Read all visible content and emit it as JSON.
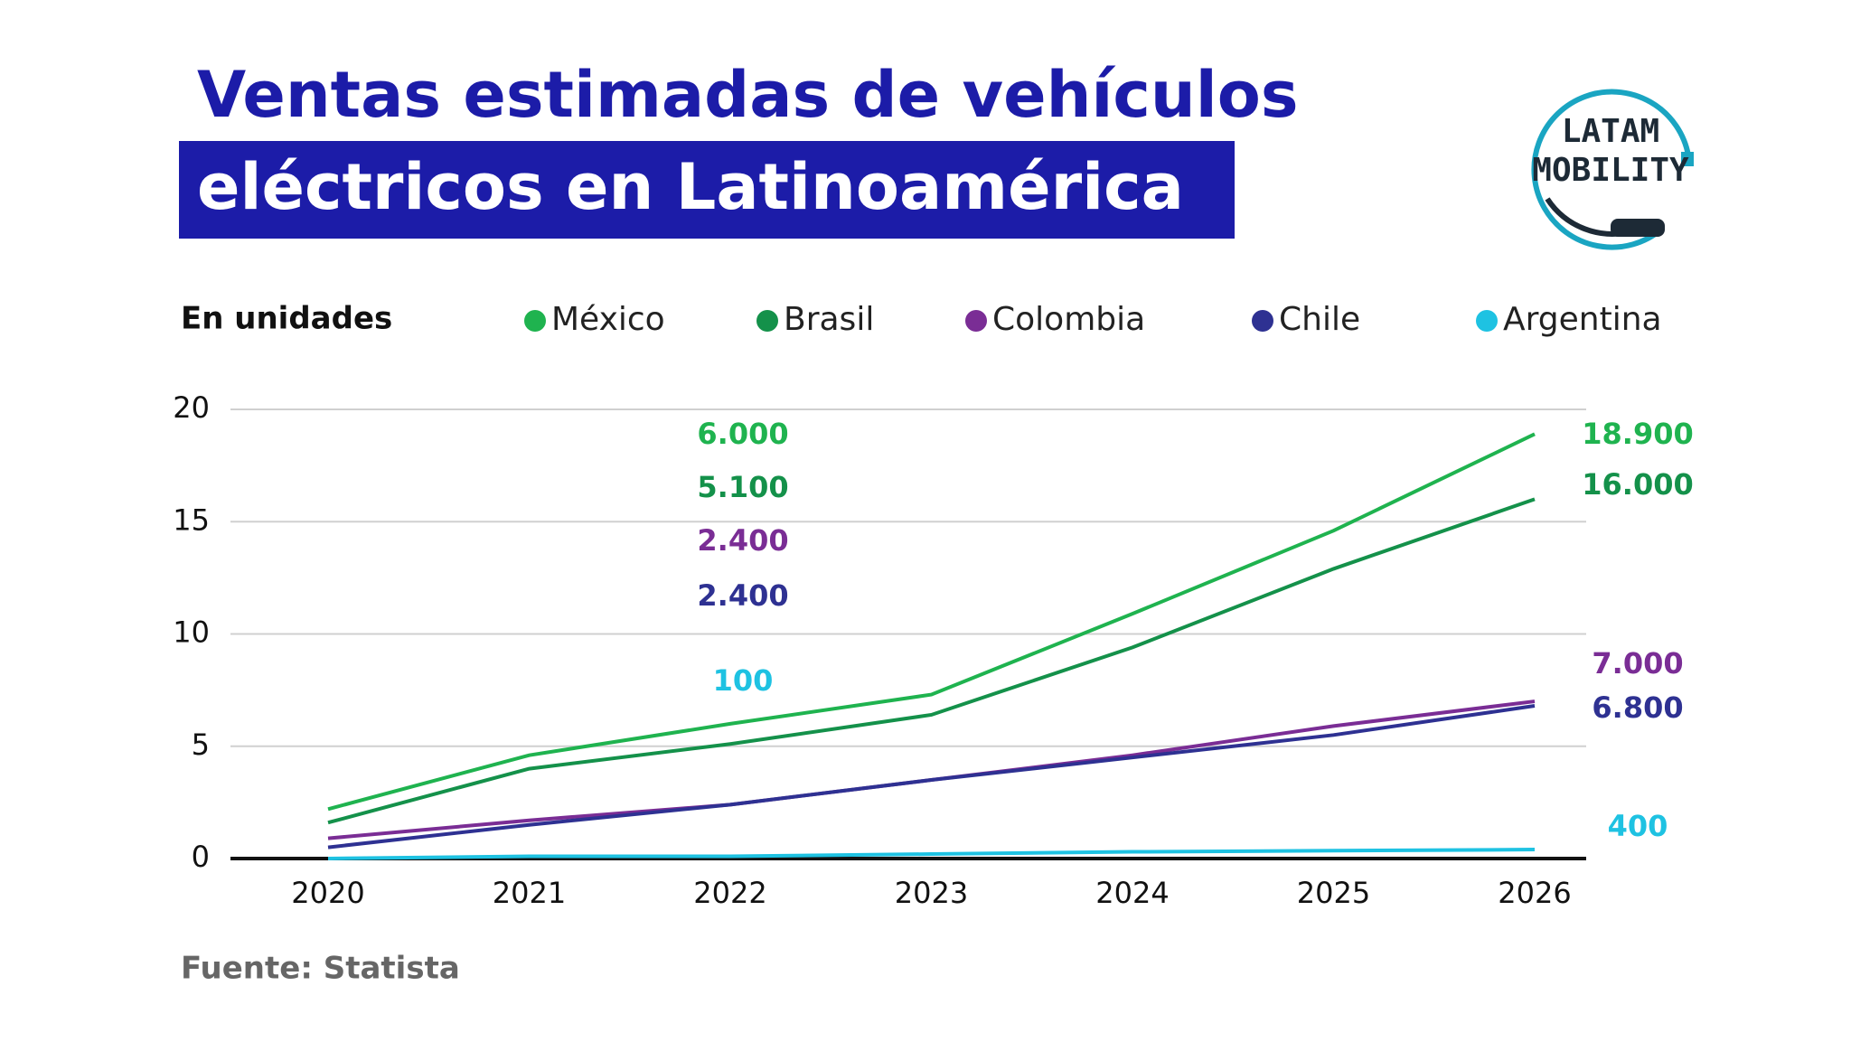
{
  "header": {
    "title_line1": "Ventas estimadas de vehículos",
    "title_line2": "eléctricos en Latinoamérica",
    "logo_line1": "LATAM",
    "logo_line2": "MOBILITY"
  },
  "chart_data": {
    "type": "line",
    "units_label": "En unidades",
    "categories": [
      "2020",
      "2021",
      "2022",
      "2023",
      "2024",
      "2025",
      "2026"
    ],
    "series": [
      {
        "name": "México",
        "color": "#1fb34f",
        "values": [
          2.2,
          4.6,
          6.0,
          7.3,
          10.9,
          14.6,
          18.9
        ],
        "value_labels": [
          null,
          null,
          "6.000",
          null,
          null,
          null,
          "18.900"
        ]
      },
      {
        "name": "Brasil",
        "color": "#14914a",
        "values": [
          1.6,
          4.0,
          5.1,
          6.4,
          9.4,
          12.9,
          16.0
        ],
        "value_labels": [
          null,
          null,
          "5.100",
          null,
          null,
          null,
          "16.000"
        ]
      },
      {
        "name": "Colombia",
        "color": "#7a2d95",
        "values": [
          0.9,
          1.7,
          2.4,
          3.5,
          4.6,
          5.9,
          7.0
        ],
        "value_labels": [
          null,
          null,
          "2.400",
          null,
          null,
          null,
          "7.000"
        ]
      },
      {
        "name": "Chile",
        "color": "#2e3192",
        "values": [
          0.5,
          1.5,
          2.4,
          3.5,
          4.5,
          5.5,
          6.8
        ],
        "value_labels": [
          null,
          null,
          "2.400",
          null,
          null,
          null,
          "6.800"
        ]
      },
      {
        "name": "Argentina",
        "color": "#1ec2e2",
        "values": [
          0,
          0.1,
          0.1,
          0.2,
          0.3,
          0.35,
          0.4
        ],
        "value_labels": [
          null,
          null,
          "100",
          null,
          null,
          null,
          "400"
        ]
      }
    ],
    "ylim": [
      0,
      20
    ],
    "yticks": [
      0,
      5,
      10,
      15,
      20
    ],
    "grid": true,
    "legend": "top"
  },
  "footer": {
    "source": "Fuente: Statista"
  }
}
